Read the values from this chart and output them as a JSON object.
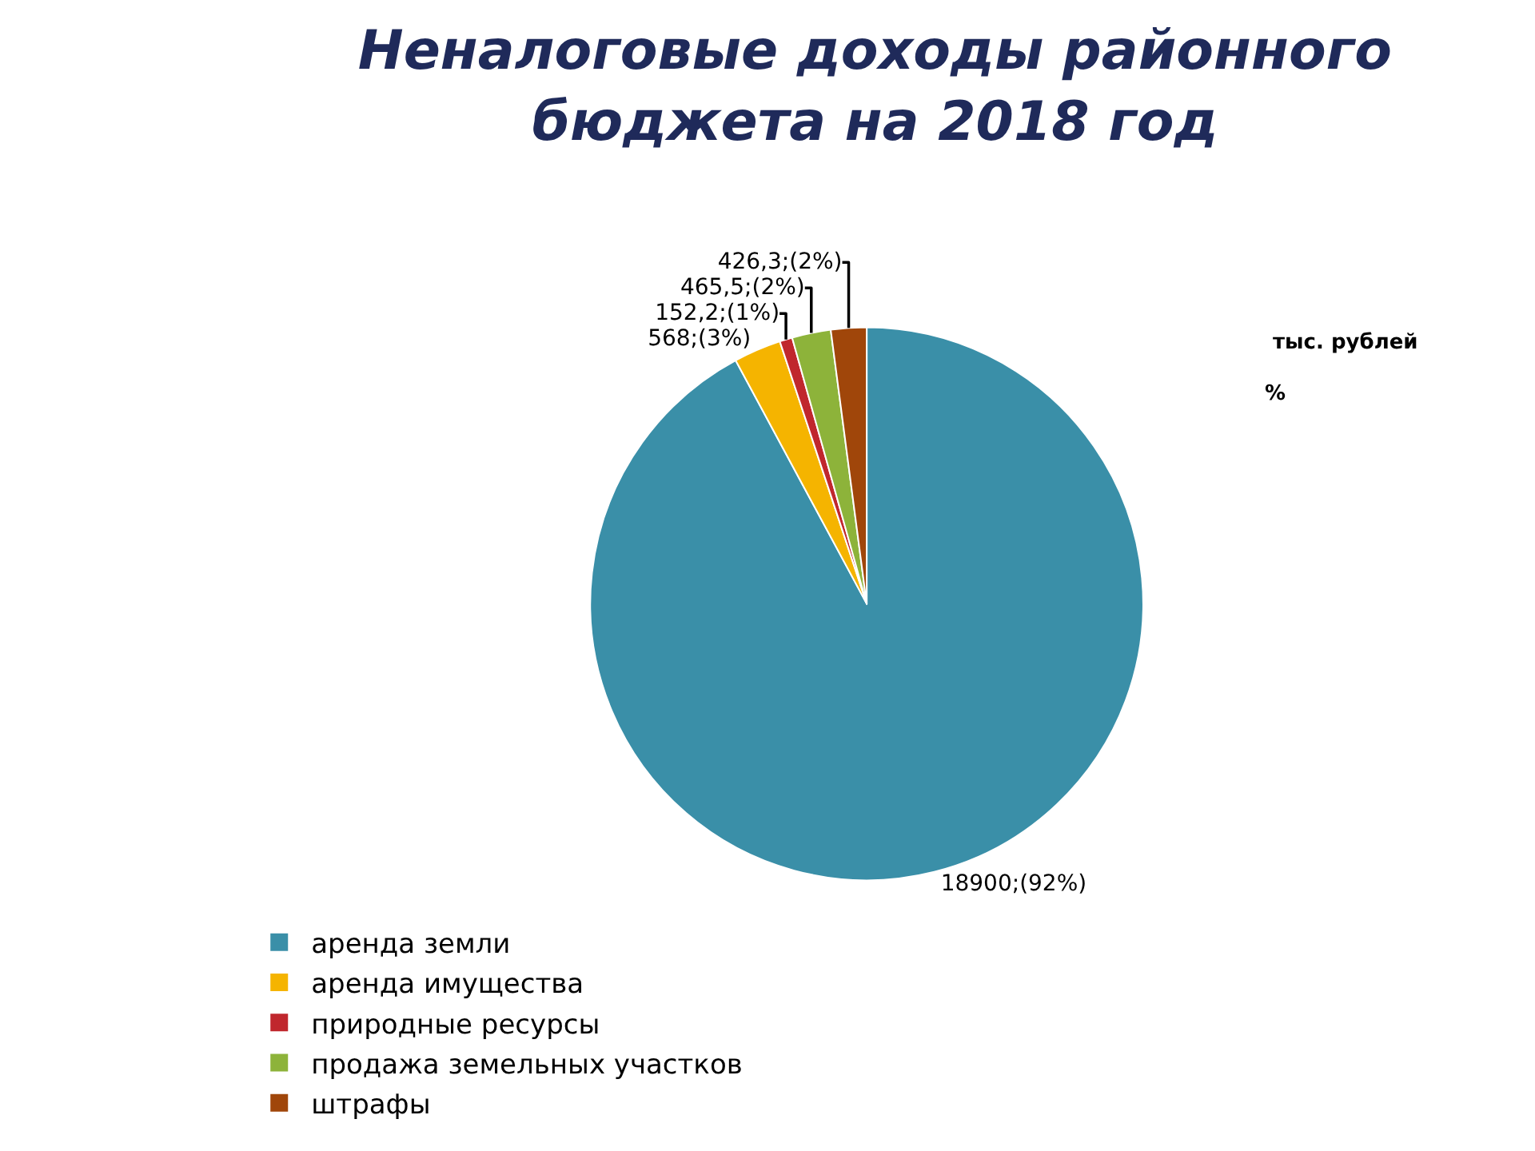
{
  "chart_data": {
    "type": "pie",
    "title": "Неналоговые доходы районного бюджета на 2018 год",
    "categories": [
      "аренда земли",
      "аренда имущества",
      "природные ресурсы",
      "продажа земельных участков",
      "штрафы"
    ],
    "values": [
      18900,
      568,
      152.2,
      465.5,
      426.3
    ],
    "value_labels": [
      "18900;(92%)",
      "568;(3%)",
      "152,2;(1%)",
      "465,5;(2%)",
      "426,3;(2%)"
    ],
    "colors": [
      "#3a8fa8",
      "#f5b400",
      "#c0272d",
      "#8db33a",
      "#a0460a"
    ],
    "annotations": [
      "тыс. рублей",
      "%"
    ],
    "legend": "bottom"
  }
}
